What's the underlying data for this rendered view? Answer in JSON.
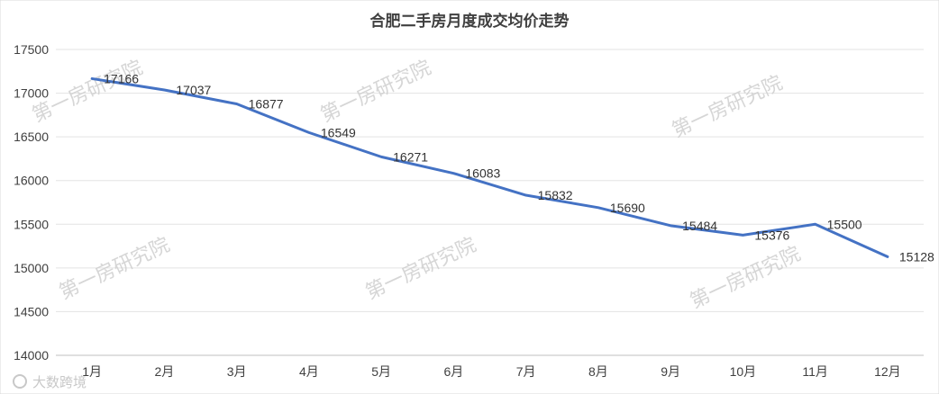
{
  "chart_data": {
    "type": "line",
    "title": "合肥二手房月度成交均价走势",
    "categories": [
      "1月",
      "2月",
      "3月",
      "4月",
      "5月",
      "6月",
      "7月",
      "8月",
      "9月",
      "10月",
      "11月",
      "12月"
    ],
    "values": [
      17166,
      17037,
      16877,
      16549,
      16271,
      16083,
      15832,
      15690,
      15484,
      15376,
      15500,
      15128
    ],
    "data_labels": [
      "17166",
      "17037",
      "16877",
      "16549",
      "16271",
      "16083",
      "15832",
      "15690",
      "15484",
      "15376",
      "15500",
      "15128"
    ],
    "ylim": [
      14000,
      17500
    ],
    "y_ticks": [
      14000,
      14500,
      15000,
      15500,
      16000,
      16500,
      17000,
      17500
    ],
    "grid": true,
    "legend": "none",
    "line_color": "#4472C4"
  },
  "watermark": "第一房研究院",
  "corner_logo": "大数跨境"
}
